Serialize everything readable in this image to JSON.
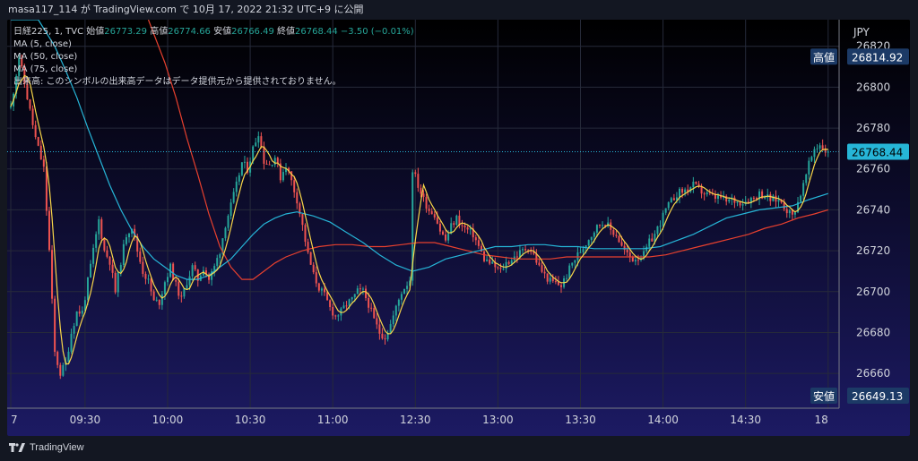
{
  "header": {
    "attribution": "masa117_114 が TradingView.com で 10月 17, 2022 21:32 UTC+9 に公開"
  },
  "legend": {
    "symbol": "日経225, 1, TVC",
    "open_label": "始値",
    "open_value": "26773.29",
    "high_label": "高値",
    "high_value": "26774.66",
    "low_label": "安値",
    "low_value": "26766.49",
    "close_label": "終値",
    "close_value": "26768.44",
    "change": "−3.50 (−0.01%)",
    "ma_lines": [
      "MA (5, close)",
      "MA (50, close)",
      "MA (75, close)"
    ],
    "volume_note": "出来高: このシンボルの出来高データはデータ提供元から提供されておりません。"
  },
  "footer": {
    "brand": "TradingView"
  },
  "colors": {
    "up": "#26a69a",
    "down": "#ef5350",
    "ma5": "#f9d649",
    "ma50": "#26b5d7",
    "ma75": "#e8402e",
    "bg_top": "#000000",
    "bg_bottom": "#1c1a63",
    "price_tag": "#26b5d7",
    "marker_tag": "#1c3a66"
  },
  "chart_data": {
    "type": "candlestick",
    "currency": "JPY",
    "ylim": [
      26643,
      26833
    ],
    "y_ticks": [
      26660,
      26680,
      26700,
      26720,
      26740,
      26760,
      26780,
      26800,
      26820
    ],
    "x_tick_labels": [
      "7",
      "09:30",
      "10:00",
      "10:30",
      "11:00",
      "12:30",
      "13:00",
      "13:30",
      "14:00",
      "14:30",
      "18"
    ],
    "x_tick_indices": [
      0,
      27,
      57,
      87,
      117,
      147,
      177,
      207,
      237,
      267,
      297
    ],
    "last_price": 26768.44,
    "high_marker": {
      "label": "高値",
      "value": 26814.92
    },
    "low_marker": {
      "label": "安値",
      "value": 26649.13
    },
    "anchors": [
      [
        0,
        26790
      ],
      [
        3,
        26815
      ],
      [
        6,
        26795
      ],
      [
        9,
        26775
      ],
      [
        12,
        26760
      ],
      [
        14,
        26720
      ],
      [
        16,
        26670
      ],
      [
        18,
        26660
      ],
      [
        20,
        26665
      ],
      [
        22,
        26680
      ],
      [
        24,
        26690
      ],
      [
        26,
        26690
      ],
      [
        28,
        26705
      ],
      [
        30,
        26720
      ],
      [
        32,
        26735
      ],
      [
        34,
        26720
      ],
      [
        36,
        26715
      ],
      [
        38,
        26700
      ],
      [
        40,
        26715
      ],
      [
        42,
        26728
      ],
      [
        44,
        26732
      ],
      [
        46,
        26720
      ],
      [
        48,
        26710
      ],
      [
        50,
        26705
      ],
      [
        52,
        26695
      ],
      [
        54,
        26695
      ],
      [
        56,
        26705
      ],
      [
        58,
        26712
      ],
      [
        60,
        26703
      ],
      [
        62,
        26696
      ],
      [
        64,
        26705
      ],
      [
        66,
        26712
      ],
      [
        68,
        26706
      ],
      [
        70,
        26712
      ],
      [
        72,
        26706
      ],
      [
        74,
        26712
      ],
      [
        76,
        26720
      ],
      [
        78,
        26733
      ],
      [
        80,
        26742
      ],
      [
        82,
        26752
      ],
      [
        84,
        26763
      ],
      [
        86,
        26760
      ],
      [
        88,
        26770
      ],
      [
        90,
        26778
      ],
      [
        92,
        26764
      ],
      [
        94,
        26762
      ],
      [
        96,
        26766
      ],
      [
        98,
        26756
      ],
      [
        100,
        26762
      ],
      [
        102,
        26754
      ],
      [
        104,
        26745
      ],
      [
        106,
        26732
      ],
      [
        108,
        26718
      ],
      [
        110,
        26708
      ],
      [
        112,
        26702
      ],
      [
        114,
        26698
      ],
      [
        116,
        26692
      ],
      [
        118,
        26688
      ],
      [
        120,
        26690
      ],
      [
        122,
        26694
      ],
      [
        124,
        26696
      ],
      [
        126,
        26700
      ],
      [
        128,
        26700
      ],
      [
        130,
        26694
      ],
      [
        132,
        26686
      ],
      [
        134,
        26680
      ],
      [
        136,
        26678
      ],
      [
        138,
        26684
      ],
      [
        140,
        26692
      ],
      [
        142,
        26700
      ],
      [
        144,
        26704
      ],
      [
        145,
        26706
      ],
      [
        146,
        26760
      ],
      [
        148,
        26752
      ],
      [
        150,
        26745
      ],
      [
        152,
        26740
      ],
      [
        154,
        26738
      ],
      [
        156,
        26730
      ],
      [
        158,
        26725
      ],
      [
        160,
        26732
      ],
      [
        162,
        26736
      ],
      [
        164,
        26732
      ],
      [
        166,
        26730
      ],
      [
        168,
        26728
      ],
      [
        170,
        26722
      ],
      [
        172,
        26716
      ],
      [
        174,
        26714
      ],
      [
        176,
        26712
      ],
      [
        178,
        26710
      ],
      [
        180,
        26714
      ],
      [
        182,
        26716
      ],
      [
        184,
        26718
      ],
      [
        186,
        26720
      ],
      [
        188,
        26722
      ],
      [
        190,
        26718
      ],
      [
        192,
        26712
      ],
      [
        194,
        26708
      ],
      [
        196,
        26705
      ],
      [
        198,
        26704
      ],
      [
        200,
        26703
      ],
      [
        202,
        26708
      ],
      [
        204,
        26714
      ],
      [
        206,
        26718
      ],
      [
        208,
        26722
      ],
      [
        210,
        26726
      ],
      [
        212,
        26730
      ],
      [
        214,
        26733
      ],
      [
        216,
        26734
      ],
      [
        218,
        26730
      ],
      [
        220,
        26728
      ],
      [
        222,
        26722
      ],
      [
        224,
        26718
      ],
      [
        226,
        26716
      ],
      [
        228,
        26717
      ],
      [
        230,
        26718
      ],
      [
        232,
        26724
      ],
      [
        234,
        26728
      ],
      [
        236,
        26734
      ],
      [
        238,
        26740
      ],
      [
        240,
        26744
      ],
      [
        242,
        26748
      ],
      [
        244,
        26749
      ],
      [
        246,
        26750
      ],
      [
        248,
        26752
      ],
      [
        250,
        26750
      ],
      [
        252,
        26748
      ],
      [
        254,
        26747
      ],
      [
        256,
        26746
      ],
      [
        258,
        26746
      ],
      [
        260,
        26744
      ],
      [
        262,
        26745
      ],
      [
        264,
        26744
      ],
      [
        266,
        26744
      ],
      [
        268,
        26745
      ],
      [
        270,
        26746
      ],
      [
        272,
        26748
      ],
      [
        274,
        26747
      ],
      [
        276,
        26745
      ],
      [
        278,
        26745
      ],
      [
        280,
        26744
      ],
      [
        282,
        26740
      ],
      [
        284,
        26737
      ],
      [
        286,
        26744
      ],
      [
        288,
        26752
      ],
      [
        290,
        26762
      ],
      [
        292,
        26770
      ],
      [
        294,
        26772
      ],
      [
        296,
        26769
      ],
      [
        297,
        26768.44
      ]
    ],
    "ma50_path": [
      [
        0,
        26833
      ],
      [
        10,
        26833
      ],
      [
        16,
        26820
      ],
      [
        20,
        26808
      ],
      [
        24,
        26795
      ],
      [
        28,
        26780
      ],
      [
        32,
        26766
      ],
      [
        36,
        26752
      ],
      [
        40,
        26740
      ],
      [
        44,
        26730
      ],
      [
        48,
        26722
      ],
      [
        52,
        26716
      ],
      [
        56,
        26712
      ],
      [
        60,
        26708
      ],
      [
        64,
        26706
      ],
      [
        68,
        26706
      ],
      [
        72,
        26708
      ],
      [
        76,
        26712
      ],
      [
        80,
        26716
      ],
      [
        84,
        26722
      ],
      [
        88,
        26728
      ],
      [
        92,
        26733
      ],
      [
        96,
        26736
      ],
      [
        100,
        26738
      ],
      [
        104,
        26739
      ],
      [
        110,
        26737
      ],
      [
        116,
        26734
      ],
      [
        122,
        26729
      ],
      [
        128,
        26724
      ],
      [
        134,
        26718
      ],
      [
        140,
        26713
      ],
      [
        146,
        26710
      ],
      [
        152,
        26712
      ],
      [
        158,
        26716
      ],
      [
        164,
        26718
      ],
      [
        170,
        26720
      ],
      [
        176,
        26722
      ],
      [
        182,
        26722
      ],
      [
        188,
        26723
      ],
      [
        194,
        26723
      ],
      [
        200,
        26722
      ],
      [
        206,
        26722
      ],
      [
        212,
        26721
      ],
      [
        218,
        26721
      ],
      [
        224,
        26721
      ],
      [
        230,
        26721
      ],
      [
        236,
        26722
      ],
      [
        242,
        26725
      ],
      [
        248,
        26728
      ],
      [
        254,
        26732
      ],
      [
        260,
        26736
      ],
      [
        266,
        26738
      ],
      [
        272,
        26740
      ],
      [
        278,
        26741
      ],
      [
        284,
        26742
      ],
      [
        290,
        26745
      ],
      [
        297,
        26748
      ]
    ],
    "ma75_path": [
      [
        50,
        26833
      ],
      [
        56,
        26812
      ],
      [
        60,
        26795
      ],
      [
        64,
        26775
      ],
      [
        68,
        26757
      ],
      [
        72,
        26738
      ],
      [
        76,
        26722
      ],
      [
        80,
        26712
      ],
      [
        84,
        26706
      ],
      [
        88,
        26706
      ],
      [
        92,
        26710
      ],
      [
        96,
        26714
      ],
      [
        100,
        26717
      ],
      [
        106,
        26720
      ],
      [
        112,
        26722
      ],
      [
        118,
        26723
      ],
      [
        124,
        26723
      ],
      [
        130,
        26722
      ],
      [
        136,
        26722
      ],
      [
        142,
        26723
      ],
      [
        148,
        26724
      ],
      [
        154,
        26724
      ],
      [
        160,
        26722
      ],
      [
        166,
        26720
      ],
      [
        172,
        26718
      ],
      [
        178,
        26717
      ],
      [
        184,
        26716
      ],
      [
        190,
        26716
      ],
      [
        196,
        26716
      ],
      [
        202,
        26717
      ],
      [
        208,
        26717
      ],
      [
        214,
        26717
      ],
      [
        220,
        26717
      ],
      [
        226,
        26717
      ],
      [
        232,
        26717
      ],
      [
        238,
        26718
      ],
      [
        244,
        26720
      ],
      [
        250,
        26722
      ],
      [
        256,
        26724
      ],
      [
        262,
        26726
      ],
      [
        268,
        26728
      ],
      [
        274,
        26731
      ],
      [
        280,
        26733
      ],
      [
        286,
        26736
      ],
      [
        292,
        26738
      ],
      [
        297,
        26740
      ]
    ]
  }
}
